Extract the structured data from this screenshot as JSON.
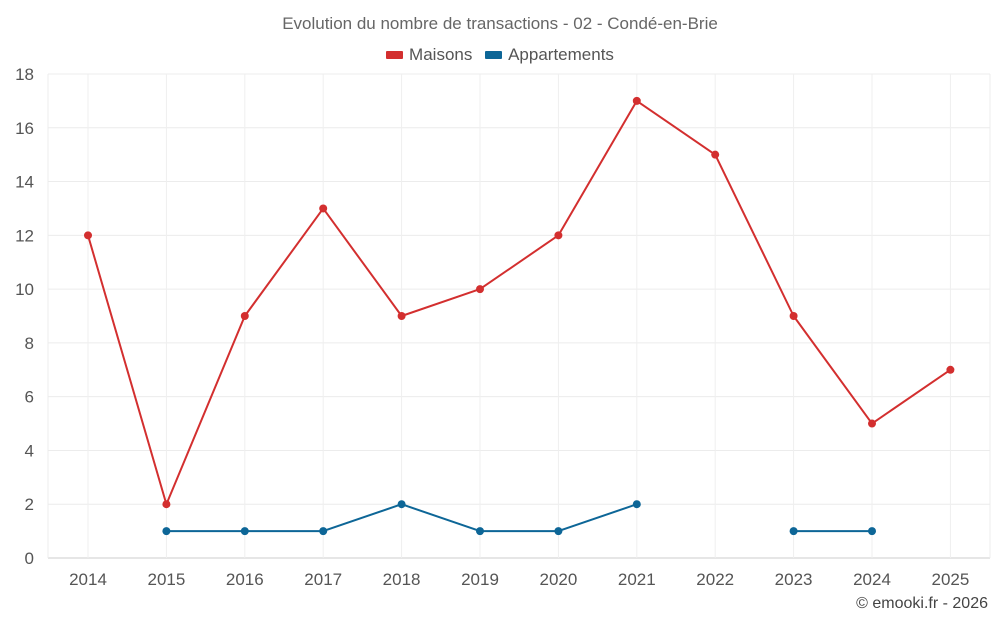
{
  "chart_data": {
    "type": "line",
    "title": "Evolution du nombre de transactions - 02 - Condé-en-Brie",
    "categories": [
      "2014",
      "2015",
      "2016",
      "2017",
      "2018",
      "2019",
      "2020",
      "2021",
      "2022",
      "2023",
      "2024",
      "2025"
    ],
    "ylim": [
      0,
      18
    ],
    "yticks": [
      0,
      2,
      4,
      6,
      8,
      10,
      12,
      14,
      16,
      18
    ],
    "grid": true,
    "legend_position": "top-center",
    "series": [
      {
        "name": "Maisons",
        "color": "#d32f2f",
        "values": [
          12,
          2,
          9,
          13,
          9,
          10,
          12,
          17,
          15,
          9,
          5,
          7
        ]
      },
      {
        "name": "Appartements",
        "color": "#0d6697",
        "values": [
          null,
          1,
          1,
          1,
          2,
          1,
          1,
          2,
          null,
          1,
          1,
          null
        ]
      }
    ]
  },
  "footer": {
    "credit": "© emooki.fr - 2026"
  }
}
